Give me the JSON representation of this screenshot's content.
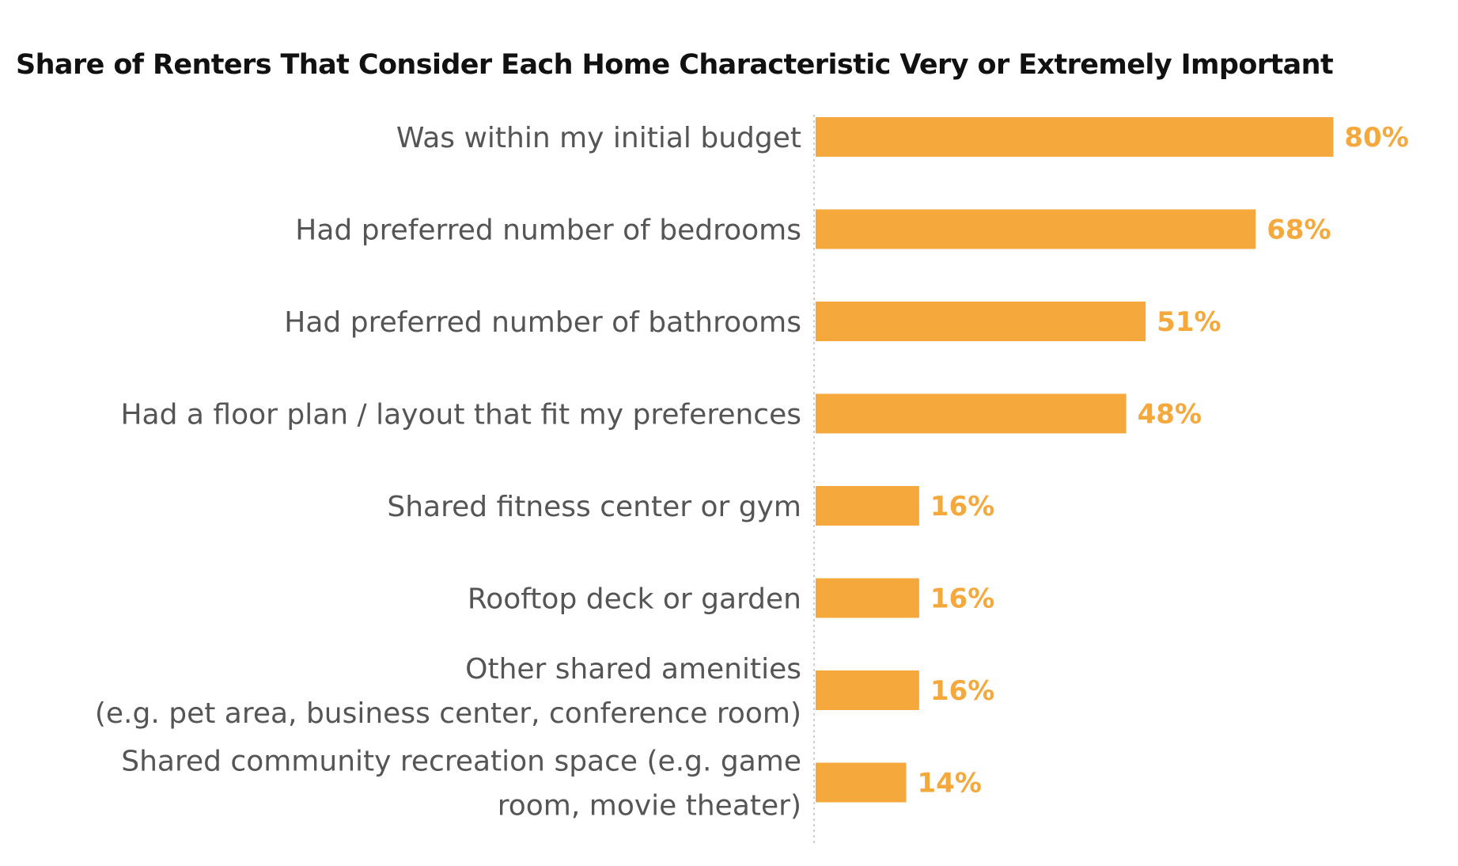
{
  "chart_data": {
    "type": "bar",
    "orientation": "horizontal",
    "title": "Share of Renters That Consider Each Home Characteristic Very or Extremely Important",
    "categories": [
      [
        "Was within my initial budget"
      ],
      [
        "Had preferred number of bedrooms"
      ],
      [
        "Had preferred number of bathrooms"
      ],
      [
        "Had a floor plan / layout that fit my preferences"
      ],
      [
        "Shared fitness center or gym"
      ],
      [
        "Rooftop deck or garden"
      ],
      [
        "Other shared amenities",
        "(e.g. pet area, business center, conference room)"
      ],
      [
        "Shared community recreation space (e.g. game",
        "room, movie theater)"
      ]
    ],
    "values": [
      80,
      68,
      51,
      48,
      16,
      16,
      16,
      14
    ],
    "value_labels": [
      "80%",
      "68%",
      "51%",
      "48%",
      "16%",
      "16%",
      "16%",
      "14%"
    ],
    "xlim": [
      0,
      100
    ],
    "bar_color": "#f5a93d",
    "grid": false,
    "legend": "none"
  }
}
